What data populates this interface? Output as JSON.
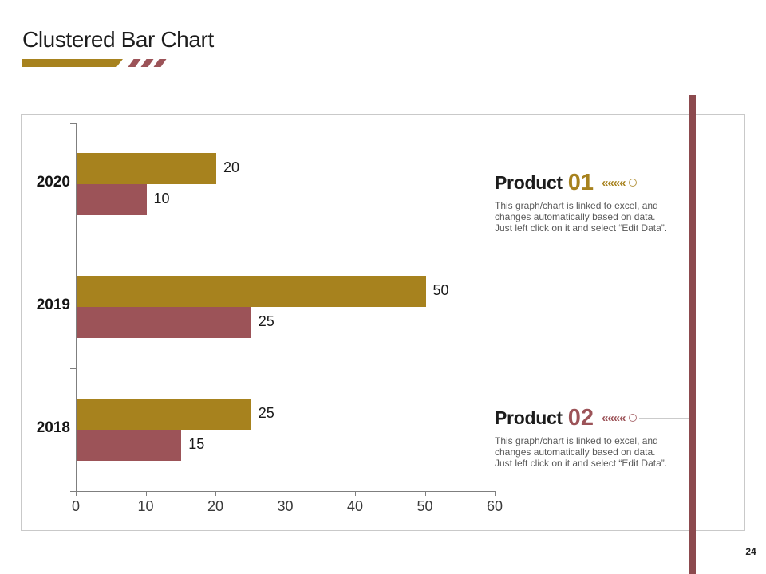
{
  "slide": {
    "title": "Clustered Bar Chart",
    "page_number": "24"
  },
  "chart_data": {
    "type": "bar",
    "orientation": "horizontal",
    "title": "",
    "categories": [
      "2020",
      "2019",
      "2018"
    ],
    "series": [
      {
        "name": "Product 01",
        "color": "#A7821E",
        "values": [
          20,
          50,
          25
        ]
      },
      {
        "name": "Product 02",
        "color": "#9C5358",
        "values": [
          10,
          25,
          15
        ]
      }
    ],
    "xlim": [
      0,
      60
    ],
    "x_ticks": [
      "0",
      "10",
      "20",
      "30",
      "40",
      "50",
      "60"
    ],
    "value_labels": [
      [
        20,
        50,
        25
      ],
      [
        10,
        25,
        15
      ]
    ],
    "grid": "off",
    "legend": "none"
  },
  "products": [
    {
      "label": "Product",
      "number": "01",
      "accent": "#A7821E",
      "chevrons": "««««",
      "description": "This graph/chart is linked to excel, and\nchanges automatically based on data.\nJust left click on it and select “Edit Data”."
    },
    {
      "label": "Product",
      "number": "02",
      "accent": "#9C5358",
      "chevrons": "««««",
      "description": "This graph/chart is linked to excel, and\nchanges automatically based on data.\nJust left click on it and select “Edit Data”."
    }
  ],
  "decor": {
    "underline_gold": "#A7821E",
    "underline_maroon": "#9C5358",
    "side_line_color": "#8C4A4E"
  }
}
